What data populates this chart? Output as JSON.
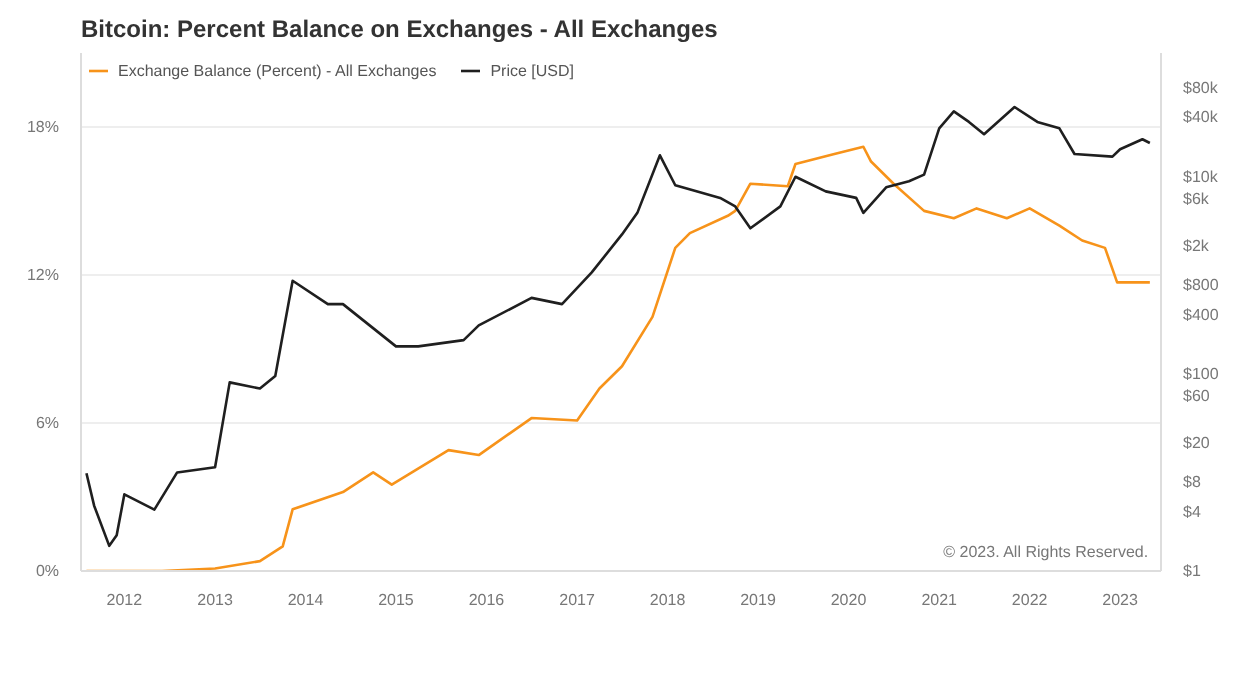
{
  "chart_data": {
    "type": "line",
    "title": "Bitcoin: Percent Balance on Exchanges - All Exchanges",
    "annotations": [
      "© 2023. All Rights Reserved."
    ],
    "xlim": [
      "2011-07-10",
      "2023-06-15"
    ],
    "xticks": [
      "2012",
      "2013",
      "2014",
      "2015",
      "2016",
      "2017",
      "2018",
      "2019",
      "2020",
      "2021",
      "2022",
      "2023"
    ],
    "ylim": [
      0,
      21
    ],
    "yticks": [
      {
        "value": 0,
        "label": "0%"
      },
      {
        "value": 6,
        "label": "6%"
      },
      {
        "value": 12,
        "label": "12%"
      },
      {
        "value": 18,
        "label": "18%"
      }
    ],
    "y2lim": [
      1,
      180000
    ],
    "y2ticks": [
      {
        "value": 1,
        "label": "$1"
      },
      {
        "value": 4,
        "label": "$4"
      },
      {
        "value": 8,
        "label": "$8"
      },
      {
        "value": 20,
        "label": "$20"
      },
      {
        "value": 60,
        "label": "$60"
      },
      {
        "value": 100,
        "label": "$100"
      },
      {
        "value": 400,
        "label": "$400"
      },
      {
        "value": 800,
        "label": "$800"
      },
      {
        "value": 2000,
        "label": "$2k"
      },
      {
        "value": 6000,
        "label": "$6k"
      },
      {
        "value": 10000,
        "label": "$10k"
      },
      {
        "value": 40000,
        "label": "$40k"
      },
      {
        "value": 80000,
        "label": "$80k"
      }
    ],
    "log": "y2",
    "grid": "y",
    "legend": "top left",
    "series": [
      {
        "name": "Exchange Balance (Percent) - All Exchanges",
        "color": "#f7931a",
        "x": [
          "2011-08",
          "2012-06",
          "2013-01",
          "2013-07",
          "2013-10",
          "2013-11-10",
          "2014-06",
          "2014-10",
          "2014-12-15",
          "2015-08",
          "2015-12",
          "2016-07",
          "2017-01",
          "2017-04",
          "2017-07",
          "2017-11",
          "2018-02",
          "2018-04",
          "2018-09",
          "2018-10",
          "2018-12",
          "2019-05",
          "2019-06",
          "2019-11",
          "2020-03",
          "2020-04",
          "2020-07",
          "2020-11",
          "2021-03",
          "2021-06",
          "2021-10",
          "2022-01",
          "2022-05",
          "2022-08",
          "2022-11",
          "2022-12-20",
          "2023-03",
          "2023-05"
        ],
        "values": [
          0,
          0,
          0.1,
          0.4,
          1.0,
          2.5,
          3.2,
          4.0,
          3.5,
          4.9,
          4.7,
          6.2,
          6.1,
          7.4,
          8.3,
          10.3,
          13.1,
          13.7,
          14.4,
          14.6,
          15.7,
          15.6,
          16.5,
          16.9,
          17.2,
          16.6,
          15.7,
          14.6,
          14.3,
          14.7,
          14.3,
          14.7,
          14.0,
          13.4,
          13.1,
          11.7,
          11.7,
          11.7
        ]
      },
      {
        "name": "Price [USD]",
        "color": "#1f1f1f",
        "axis": "y2",
        "x": [
          "2011-08",
          "2011-09",
          "2011-11",
          "2011-12",
          "2012-01",
          "2012-05",
          "2012-08",
          "2013-01",
          "2013-03",
          "2013-07",
          "2013-09",
          "2013-11-10",
          "2014-04",
          "2014-06",
          "2015-01",
          "2015-04",
          "2015-10",
          "2015-12",
          "2016-07",
          "2016-11",
          "2017-03",
          "2017-07",
          "2017-09",
          "2017-12",
          "2018-02",
          "2018-05",
          "2018-08",
          "2018-10",
          "2018-12",
          "2019-04",
          "2019-06",
          "2019-10",
          "2020-02",
          "2020-03",
          "2020-06",
          "2020-09",
          "2020-11",
          "2021-01",
          "2021-03",
          "2021-05",
          "2021-07",
          "2021-11",
          "2022-02",
          "2022-05",
          "2022-07",
          "2022-12",
          "2023-01",
          "2023-04",
          "2023-05"
        ],
        "values": [
          9.8,
          4.6,
          1.8,
          2.3,
          6,
          4.2,
          10,
          11.3,
          82,
          71,
          95,
          880,
          510,
          510,
          190,
          190,
          220,
          310,
          590,
          510,
          1070,
          2600,
          4300,
          16500,
          8200,
          7100,
          6100,
          5000,
          3000,
          5000,
          10000,
          7100,
          6100,
          4300,
          7800,
          9000,
          10500,
          31000,
          46000,
          36000,
          27000,
          51000,
          36000,
          31000,
          17000,
          16000,
          19000,
          24000,
          22000
        ]
      }
    ]
  }
}
